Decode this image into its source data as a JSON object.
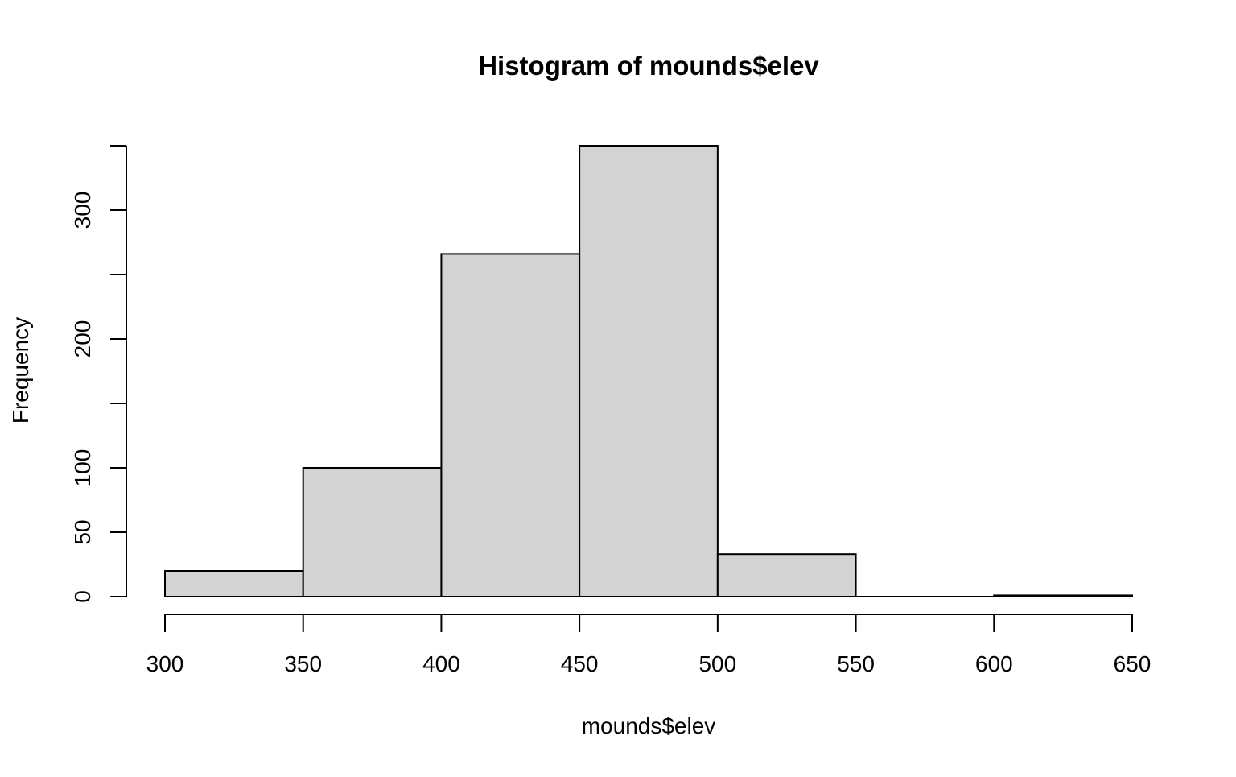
{
  "chart_data": {
    "type": "histogram",
    "title": "Histogram of mounds$elev",
    "xlabel": "mounds$elev",
    "ylabel": "Frequency",
    "bins": [
      {
        "from": 300,
        "to": 350,
        "count": 20
      },
      {
        "from": 350,
        "to": 400,
        "count": 100
      },
      {
        "from": 400,
        "to": 450,
        "count": 266
      },
      {
        "from": 450,
        "to": 500,
        "count": 350
      },
      {
        "from": 500,
        "to": 550,
        "count": 33
      },
      {
        "from": 550,
        "to": 600,
        "count": 0
      },
      {
        "from": 600,
        "to": 650,
        "count": 1
      }
    ],
    "x_ticks": [
      300,
      350,
      400,
      450,
      500,
      550,
      600,
      650
    ],
    "y_ticks": [
      0,
      50,
      100,
      150,
      200,
      250,
      300,
      350
    ],
    "y_tick_labels": [
      "0",
      "50",
      "100",
      "",
      "200",
      "",
      "300",
      ""
    ],
    "xlim": [
      300,
      650
    ],
    "ylim": [
      0,
      350
    ],
    "grid": false,
    "colors": {
      "bar_fill": "#d3d3d3",
      "bar_stroke": "#000000",
      "text": "#000000"
    }
  }
}
